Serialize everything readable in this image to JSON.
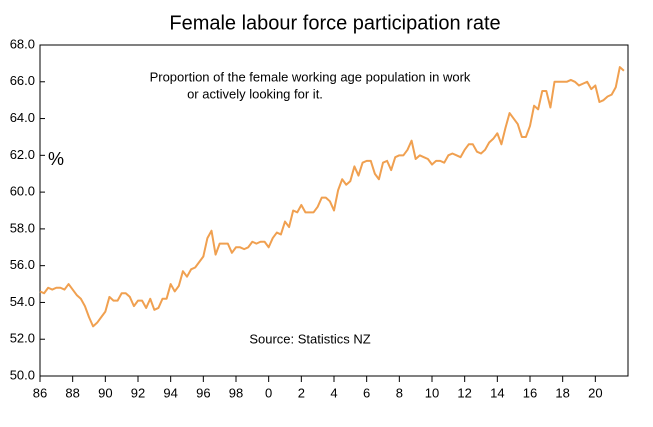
{
  "chart_data": {
    "type": "line",
    "title": "Female labour force participation rate",
    "annotation": [
      "Proportion of the female working age population in work",
      "or actively looking for it."
    ],
    "source": "Source: Statistics NZ",
    "y_label": "%",
    "x": [
      1986,
      1986.25,
      1986.5,
      1986.75,
      1987,
      1987.25,
      1987.5,
      1987.75,
      1988,
      1988.25,
      1988.5,
      1988.75,
      1989,
      1989.25,
      1989.5,
      1989.75,
      1990,
      1990.25,
      1990.5,
      1990.75,
      1991,
      1991.25,
      1991.5,
      1991.75,
      1992,
      1992.25,
      1992.5,
      1992.75,
      1993,
      1993.25,
      1993.5,
      1993.75,
      1994,
      1994.25,
      1994.5,
      1994.75,
      1995,
      1995.25,
      1995.5,
      1995.75,
      1996,
      1996.25,
      1996.5,
      1996.75,
      1997,
      1997.25,
      1997.5,
      1997.75,
      1998,
      1998.25,
      1998.5,
      1998.75,
      1999,
      1999.25,
      1999.5,
      1999.75,
      2000,
      2000.25,
      2000.5,
      2000.75,
      2001,
      2001.25,
      2001.5,
      2001.75,
      2002,
      2002.25,
      2002.5,
      2002.75,
      2003,
      2003.25,
      2003.5,
      2003.75,
      2004,
      2004.25,
      2004.5,
      2004.75,
      2005,
      2005.25,
      2005.5,
      2005.75,
      2006,
      2006.25,
      2006.5,
      2006.75,
      2007,
      2007.25,
      2007.5,
      2007.75,
      2008,
      2008.25,
      2008.5,
      2008.75,
      2009,
      2009.25,
      2009.5,
      2009.75,
      2010,
      2010.25,
      2010.5,
      2010.75,
      2011,
      2011.25,
      2011.5,
      2011.75,
      2012,
      2012.25,
      2012.5,
      2012.75,
      2013,
      2013.25,
      2013.5,
      2013.75,
      2014,
      2014.25,
      2014.5,
      2014.75,
      2015,
      2015.25,
      2015.5,
      2015.75,
      2016,
      2016.25,
      2016.5,
      2016.75,
      2017,
      2017.25,
      2017.5,
      2017.75,
      2018,
      2018.25,
      2018.5,
      2018.75,
      2019,
      2019.25,
      2019.5,
      2019.75,
      2020,
      2020.25,
      2020.5,
      2020.75,
      2021,
      2021.25,
      2021.5,
      2021.75
    ],
    "series": [
      {
        "name": "Female labour force participation rate",
        "color": "#f0a050",
        "values": [
          54.6,
          54.5,
          54.8,
          54.7,
          54.8,
          54.8,
          54.7,
          55.0,
          54.7,
          54.4,
          54.2,
          53.8,
          53.2,
          52.7,
          52.9,
          53.2,
          53.5,
          54.3,
          54.1,
          54.1,
          54.5,
          54.5,
          54.3,
          53.8,
          54.1,
          54.1,
          53.7,
          54.2,
          53.6,
          53.7,
          54.2,
          54.2,
          55.0,
          54.6,
          54.9,
          55.7,
          55.4,
          55.8,
          55.9,
          56.2,
          56.5,
          57.5,
          57.9,
          56.6,
          57.2,
          57.2,
          57.2,
          56.7,
          57.0,
          57.0,
          56.9,
          57.0,
          57.3,
          57.2,
          57.3,
          57.3,
          57.0,
          57.5,
          57.8,
          57.7,
          58.4,
          58.1,
          59.0,
          58.9,
          59.3,
          58.9,
          58.9,
          58.9,
          59.2,
          59.7,
          59.7,
          59.5,
          59.0,
          60.1,
          60.7,
          60.4,
          60.6,
          61.4,
          60.9,
          61.6,
          61.7,
          61.7,
          61.0,
          60.7,
          61.6,
          61.7,
          61.2,
          61.9,
          62.0,
          62.0,
          62.3,
          62.8,
          61.8,
          62.0,
          61.9,
          61.8,
          61.5,
          61.7,
          61.7,
          61.6,
          62.0,
          62.1,
          62.0,
          61.9,
          62.3,
          62.6,
          62.6,
          62.2,
          62.1,
          62.3,
          62.7,
          62.9,
          63.2,
          62.6,
          63.5,
          64.3,
          64.0,
          63.7,
          63.0,
          63.0,
          63.6,
          64.7,
          64.5,
          65.5,
          65.5,
          64.6,
          66.0,
          66.0,
          66.0,
          66.0,
          66.1,
          66.0,
          65.8,
          65.9,
          66.0,
          65.6,
          65.8,
          64.9,
          65.0,
          65.2,
          65.3,
          65.7,
          66.8,
          66.6
        ]
      }
    ],
    "xlim": [
      1986,
      2022
    ],
    "xticks": [
      {
        "value": 1986,
        "label": "86"
      },
      {
        "value": 1988,
        "label": "88"
      },
      {
        "value": 1990,
        "label": "90"
      },
      {
        "value": 1992,
        "label": "92"
      },
      {
        "value": 1994,
        "label": "94"
      },
      {
        "value": 1996,
        "label": "96"
      },
      {
        "value": 1998,
        "label": "98"
      },
      {
        "value": 2000,
        "label": "0"
      },
      {
        "value": 2002,
        "label": "2"
      },
      {
        "value": 2004,
        "label": "4"
      },
      {
        "value": 2006,
        "label": "6"
      },
      {
        "value": 2008,
        "label": "8"
      },
      {
        "value": 2010,
        "label": "10"
      },
      {
        "value": 2012,
        "label": "12"
      },
      {
        "value": 2014,
        "label": "14"
      },
      {
        "value": 2016,
        "label": "16"
      },
      {
        "value": 2018,
        "label": "18"
      },
      {
        "value": 2020,
        "label": "20"
      }
    ],
    "ylim": [
      50,
      68
    ],
    "yticks": [
      {
        "value": 50,
        "label": "50.0"
      },
      {
        "value": 52,
        "label": "52.0"
      },
      {
        "value": 54,
        "label": "54.0"
      },
      {
        "value": 56,
        "label": "56.0"
      },
      {
        "value": 58,
        "label": "58.0"
      },
      {
        "value": 60,
        "label": "60.0"
      },
      {
        "value": 62,
        "label": "62.0"
      },
      {
        "value": 64,
        "label": "64.0"
      },
      {
        "value": 66,
        "label": "66.0"
      },
      {
        "value": 68,
        "label": "68.0"
      }
    ],
    "grid": false
  }
}
